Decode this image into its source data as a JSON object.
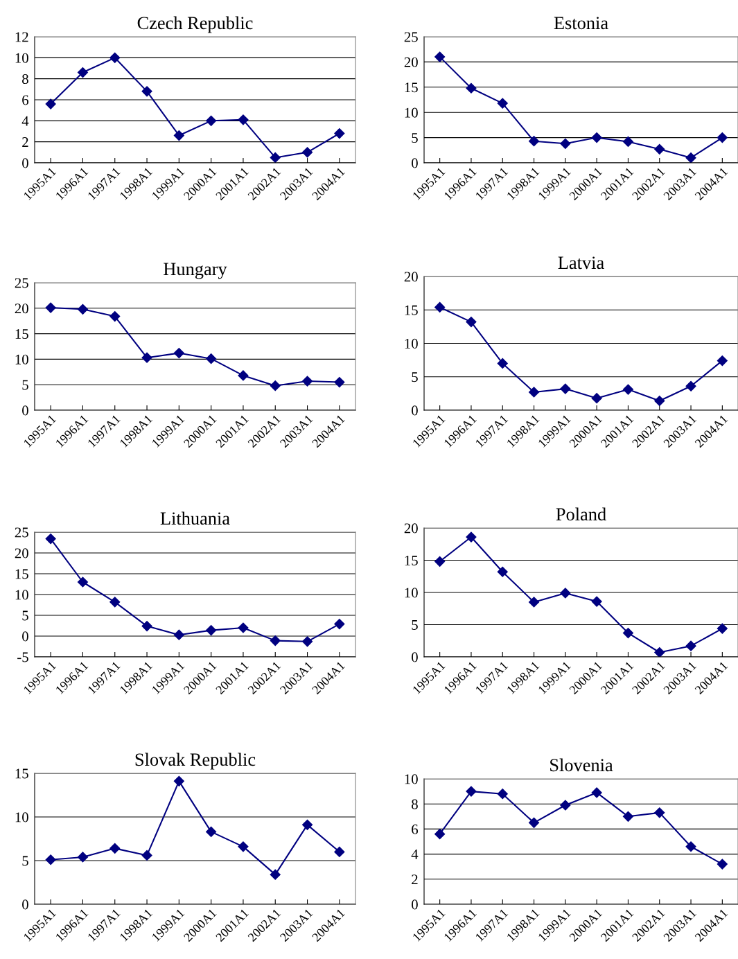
{
  "chart_data": [
    {
      "type": "line",
      "title": "Czech Republic",
      "categories": [
        "1995A1",
        "1996A1",
        "1997A1",
        "1998A1",
        "1999A1",
        "2000A1",
        "2001A1",
        "2002A1",
        "2003A1",
        "2004A1"
      ],
      "series": [
        {
          "color": "#000080",
          "values": [
            5.6,
            8.6,
            10.0,
            6.8,
            2.6,
            4.0,
            4.1,
            0.5,
            1.0,
            2.8
          ]
        }
      ],
      "ylim": [
        0,
        12
      ],
      "yticks": [
        0,
        2,
        4,
        6,
        8,
        10,
        12
      ],
      "grid": "y",
      "marker": "diamond",
      "line_style": "solid"
    },
    {
      "type": "line",
      "title": "Estonia",
      "categories": [
        "1995A1",
        "1996A1",
        "1997A1",
        "1998A1",
        "1999A1",
        "2000A1",
        "2001A1",
        "2002A1",
        "2003A1",
        "2004A1"
      ],
      "series": [
        {
          "color": "#000080",
          "values": [
            21.0,
            14.8,
            11.8,
            4.3,
            3.8,
            5.0,
            4.2,
            2.7,
            1.0,
            5.0
          ]
        }
      ],
      "ylim": [
        0,
        25
      ],
      "yticks": [
        0,
        5,
        10,
        15,
        20,
        25
      ],
      "grid": "y",
      "marker": "diamond",
      "line_style": "solid"
    },
    {
      "type": "line",
      "title": "Hungary",
      "categories": [
        "1995A1",
        "1996A1",
        "1997A1",
        "1998A1",
        "1999A1",
        "2000A1",
        "2001A1",
        "2002A1",
        "2003A1",
        "2004A1"
      ],
      "series": [
        {
          "color": "#000080",
          "values": [
            20.1,
            19.8,
            18.4,
            10.3,
            11.2,
            10.1,
            6.8,
            4.8,
            5.7,
            5.5
          ]
        }
      ],
      "ylim": [
        0,
        25
      ],
      "yticks": [
        0,
        5,
        10,
        15,
        20,
        25
      ],
      "grid": "y",
      "marker": "diamond",
      "line_style": "solid"
    },
    {
      "type": "line",
      "title": "Latvia",
      "categories": [
        "1995A1",
        "1996A1",
        "1997A1",
        "1998A1",
        "1999A1",
        "2000A1",
        "2001A1",
        "2002A1",
        "2003A1",
        "2004A1"
      ],
      "series": [
        {
          "color": "#000080",
          "values": [
            15.4,
            13.2,
            7.0,
            2.7,
            3.2,
            1.8,
            3.1,
            1.4,
            3.6,
            7.4
          ]
        }
      ],
      "ylim": [
        0,
        20
      ],
      "yticks": [
        0,
        5,
        10,
        15,
        20
      ],
      "grid": "y",
      "marker": "diamond",
      "line_style": "solid"
    },
    {
      "type": "line",
      "title": "Lithuania",
      "categories": [
        "1995A1",
        "1996A1",
        "1997A1",
        "1998A1",
        "1999A1",
        "2000A1",
        "2001A1",
        "2002A1",
        "2003A1",
        "2004A1"
      ],
      "series": [
        {
          "color": "#000080",
          "values": [
            23.4,
            13.0,
            8.2,
            2.4,
            0.3,
            1.4,
            2.0,
            -1.1,
            -1.3,
            2.9
          ]
        }
      ],
      "ylim": [
        -5,
        25
      ],
      "yticks": [
        -5,
        0,
        5,
        10,
        15,
        20,
        25
      ],
      "grid": "y",
      "marker": "diamond",
      "line_style": "solid"
    },
    {
      "type": "line",
      "title": "Poland",
      "categories": [
        "1995A1",
        "1996A1",
        "1997A1",
        "1998A1",
        "1999A1",
        "2000A1",
        "2001A1",
        "2002A1",
        "2003A1",
        "2004A1"
      ],
      "series": [
        {
          "color": "#000080",
          "values": [
            14.8,
            18.6,
            13.2,
            8.5,
            9.9,
            8.6,
            3.7,
            0.7,
            1.7,
            4.4
          ]
        }
      ],
      "ylim": [
        0,
        20
      ],
      "yticks": [
        0,
        5,
        10,
        15,
        20
      ],
      "grid": "y",
      "marker": "diamond",
      "line_style": "solid"
    },
    {
      "type": "line",
      "title": "Slovak Republic",
      "categories": [
        "1995A1",
        "1996A1",
        "1997A1",
        "1998A1",
        "1999A1",
        "2000A1",
        "2001A1",
        "2002A1",
        "2003A1",
        "2004A1"
      ],
      "series": [
        {
          "color": "#000080",
          "values": [
            5.1,
            5.4,
            6.4,
            5.6,
            14.1,
            8.3,
            6.6,
            3.4,
            9.1,
            6.0
          ]
        }
      ],
      "ylim": [
        0,
        15
      ],
      "yticks": [
        0,
        5,
        10,
        15
      ],
      "grid": "y",
      "marker": "diamond",
      "line_style": "solid"
    },
    {
      "type": "line",
      "title": "Slovenia",
      "categories": [
        "1995A1",
        "1996A1",
        "1997A1",
        "1998A1",
        "1999A1",
        "2000A1",
        "2001A1",
        "2002A1",
        "2003A1",
        "2004A1"
      ],
      "series": [
        {
          "color": "#000080",
          "values": [
            5.6,
            9.0,
            8.8,
            6.5,
            7.9,
            8.9,
            7.0,
            7.3,
            4.6,
            3.2
          ]
        }
      ],
      "ylim": [
        0,
        10
      ],
      "yticks": [
        0,
        2,
        4,
        6,
        8,
        10
      ],
      "grid": "y",
      "marker": "diamond",
      "line_style": "solid"
    }
  ]
}
